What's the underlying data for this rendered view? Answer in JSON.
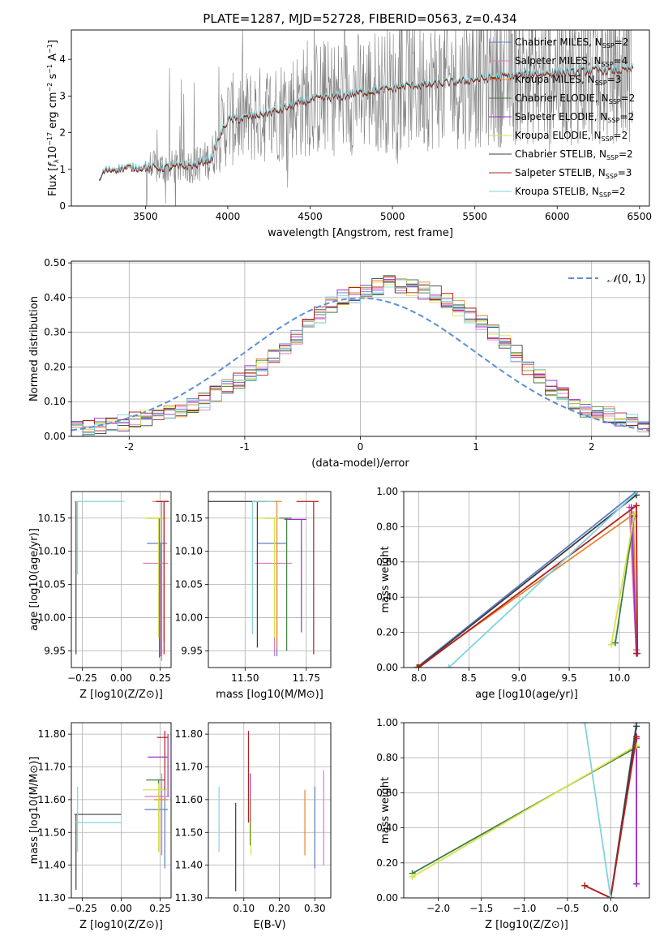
{
  "figure": {
    "title": "PLATE=1287, MJD=52728, FIBERID=0563, z=0.434"
  },
  "palette": [
    "#5b7fc4",
    "#e377c2",
    "#e5842b",
    "#3f7f3f",
    "#9a32c9",
    "#d9e24b",
    "#3d3d3d",
    "#b41f1f",
    "#7fd4e0"
  ],
  "chart_data": [
    {
      "id": "spectrum",
      "type": "line",
      "xlabel": "wavelength [Angstrom, rest frame]",
      "ylabel": "Flux [f_λ 10^-17 erg cm^-2 s^-1 A^-1]",
      "xlim": [
        3050,
        6560
      ],
      "ylim": [
        0,
        4.8
      ],
      "xticks": [
        3500,
        4000,
        4500,
        5000,
        5500,
        6000,
        6500
      ],
      "yticks": [
        0,
        1,
        2,
        3,
        4
      ],
      "grid": false,
      "legend_position": "top-right",
      "data_color": "#808080",
      "model_continuum": {
        "x": [
          3220,
          3250,
          3300,
          3400,
          3500,
          3600,
          3700,
          3800,
          3900,
          3950,
          4000,
          4050,
          4100,
          4200,
          4300,
          4400,
          4500,
          4600,
          4700,
          4800,
          4900,
          5000,
          5100,
          5200,
          5300,
          5400,
          5500,
          5600,
          5700,
          5800,
          5900,
          6000,
          6100,
          6200,
          6300,
          6400,
          6450
        ],
        "y": [
          0.7,
          0.95,
          1.0,
          1.05,
          1.05,
          1.05,
          1.07,
          1.12,
          1.3,
          1.9,
          2.35,
          2.35,
          2.4,
          2.5,
          2.6,
          2.75,
          2.9,
          2.95,
          3.0,
          3.1,
          3.15,
          3.2,
          3.3,
          3.3,
          3.35,
          3.4,
          3.45,
          3.5,
          3.55,
          3.6,
          3.6,
          3.65,
          3.65,
          3.7,
          3.7,
          3.7,
          3.75
        ]
      },
      "series": [
        {
          "name": "Chabrier MILES, N_SSP=2",
          "model": "Chabrier MILES",
          "nssp": "2",
          "color": "#5b7fc4",
          "offset": 0.02
        },
        {
          "name": "Salpeter MILES, N_SSP=4",
          "model": "Salpeter MILES",
          "nssp": "4",
          "color": "#e377c2",
          "offset": 0.0
        },
        {
          "name": "Kroupa MILES, N_SSP=3",
          "model": "Kroupa MILES",
          "nssp": "3",
          "color": "#e5842b",
          "offset": 0.01
        },
        {
          "name": "Chabrier ELODIE, N_SSP=2",
          "model": "Chabrier ELODIE",
          "nssp": "2",
          "color": "#3f7f3f",
          "offset": -0.01
        },
        {
          "name": "Salpeter ELODIE, N_SSP=2",
          "model": "Salpeter ELODIE",
          "nssp": "2",
          "color": "#9a32c9",
          "offset": 0.0
        },
        {
          "name": "Kroupa ELODIE, N_SSP=2",
          "model": "Kroupa ELODIE",
          "nssp": "2",
          "color": "#d9e24b",
          "offset": 0.02
        },
        {
          "name": "Chabrier STELIB, N_SSP=2",
          "model": "Chabrier STELIB",
          "nssp": "2",
          "color": "#3d3d3d",
          "offset": -0.02
        },
        {
          "name": "Salpeter STELIB, N_SSP=3",
          "model": "Salpeter STELIB",
          "nssp": "3",
          "color": "#b41f1f",
          "offset": 0.0
        },
        {
          "name": "Kroupa STELIB, N_SSP=2",
          "model": "Kroupa STELIB",
          "nssp": "2",
          "color": "#7fd4e0",
          "offset": 0.04
        }
      ]
    },
    {
      "id": "residuals",
      "type": "histogram",
      "xlabel": "(data-model)/error",
      "ylabel": "Normed distribution",
      "xlim": [
        -2.5,
        2.5
      ],
      "ylim": [
        0,
        0.505
      ],
      "xticks": [
        -2,
        -1,
        0,
        1,
        2
      ],
      "yticks": [
        0.0,
        0.1,
        0.2,
        0.3,
        0.4,
        0.5
      ],
      "grid": true,
      "legend_position": "top-right",
      "legend_label": "N(0,1)",
      "reference_color": "#5b8fd6",
      "bin_width": 0.1,
      "base_values": [
        0.02,
        0.025,
        0.03,
        0.035,
        0.04,
        0.05,
        0.055,
        0.06,
        0.07,
        0.08,
        0.09,
        0.1,
        0.12,
        0.14,
        0.16,
        0.18,
        0.2,
        0.23,
        0.26,
        0.29,
        0.32,
        0.35,
        0.38,
        0.4,
        0.41,
        0.42,
        0.43,
        0.44,
        0.43,
        0.43,
        0.42,
        0.41,
        0.39,
        0.37,
        0.35,
        0.33,
        0.3,
        0.27,
        0.24,
        0.2,
        0.17,
        0.14,
        0.12,
        0.1,
        0.08,
        0.07,
        0.06,
        0.05,
        0.04,
        0.035
      ]
    },
    {
      "id": "age-vs-Z",
      "type": "errorbar",
      "xlabel": "Z [log10(Z/Z⊙)]",
      "ylabel": "age [log10(age/yr)]",
      "xlim": [
        -0.32,
        0.32
      ],
      "ylim": [
        9.925,
        10.19
      ],
      "xticks": [
        -0.25,
        0.0,
        0.25
      ],
      "yticks": [
        9.95,
        10.0,
        10.05,
        10.1,
        10.15
      ],
      "grid": true,
      "points": [
        {
          "x": 0.255,
          "y": 10.112,
          "xerr": [
            0.09,
            0.04
          ],
          "yerr": [
            0.17,
            0.0
          ],
          "color": "#5b7fc4"
        },
        {
          "x": 0.25,
          "y": 10.082,
          "xerr": [
            0.11,
            0.05
          ],
          "yerr": [
            0.14,
            0.0
          ],
          "color": "#e377c2"
        },
        {
          "x": 0.26,
          "y": 10.175,
          "xerr": [
            0.06,
            0.04
          ],
          "yerr": [
            0.24,
            0.0
          ],
          "color": "#e5842b"
        },
        {
          "x": 0.245,
          "y": 10.15,
          "xerr": [
            0.08,
            0.05
          ],
          "yerr": [
            0.21,
            0.0
          ],
          "color": "#3f7f3f"
        },
        {
          "x": 0.275,
          "y": 10.175,
          "xerr": [
            0.05,
            0.03
          ],
          "yerr": [
            0.21,
            0.0
          ],
          "color": "#9a32c9"
        },
        {
          "x": 0.24,
          "y": 10.15,
          "xerr": [
            0.1,
            0.06
          ],
          "yerr": [
            0.18,
            0.0
          ],
          "color": "#d9e24b"
        },
        {
          "x": -0.29,
          "y": 10.175,
          "xerr": [
            0.01,
            0.0
          ],
          "yerr": [
            0.23,
            0.0
          ],
          "color": "#3d3d3d"
        },
        {
          "x": 0.275,
          "y": 10.175,
          "xerr": [
            0.05,
            0.03
          ],
          "yerr": [
            0.23,
            0.0
          ],
          "color": "#b41f1f"
        },
        {
          "x": -0.28,
          "y": 10.175,
          "xerr": [
            0.02,
            0.3
          ],
          "yerr": [
            0.11,
            0.0
          ],
          "color": "#7fd4e0"
        }
      ]
    },
    {
      "id": "age-vs-mass",
      "type": "errorbar",
      "xlabel": "mass [log10(M/M⊙)]",
      "ylabel": "",
      "xlim": [
        11.35,
        11.85
      ],
      "ylim": [
        9.925,
        10.19
      ],
      "xticks": [
        11.5,
        11.75
      ],
      "yticks": [
        9.95,
        10.0,
        10.05,
        10.1,
        10.15
      ],
      "grid": true,
      "points": [
        {
          "x": 11.63,
          "y": 10.112,
          "xerr": [
            0.08,
            0.04
          ],
          "yerr": [
            0.17,
            0.0
          ],
          "color": "#5b7fc4"
        },
        {
          "x": 11.62,
          "y": 10.082,
          "xerr": [
            0.08,
            0.07
          ],
          "yerr": [
            0.14,
            0.0
          ],
          "color": "#e377c2"
        },
        {
          "x": 11.63,
          "y": 10.175,
          "xerr": [
            0.08,
            0.02
          ],
          "yerr": [
            0.22,
            0.0
          ],
          "color": "#e5842b"
        },
        {
          "x": 11.67,
          "y": 10.15,
          "xerr": [
            0.09,
            0.02
          ],
          "yerr": [
            0.2,
            0.0
          ],
          "color": "#3f7f3f"
        },
        {
          "x": 11.73,
          "y": 10.148,
          "xerr": [
            0.07,
            0.02
          ],
          "yerr": [
            0.17,
            0.0
          ],
          "color": "#9a32c9"
        },
        {
          "x": 11.62,
          "y": 10.15,
          "xerr": [
            0.08,
            0.02
          ],
          "yerr": [
            0.18,
            0.0
          ],
          "color": "#d9e24b"
        },
        {
          "x": 11.55,
          "y": 10.175,
          "xerr": [
            0.2,
            0.04
          ],
          "yerr": [
            0.22,
            0.0
          ],
          "color": "#3d3d3d"
        },
        {
          "x": 11.78,
          "y": 10.175,
          "xerr": [
            0.07,
            0.02
          ],
          "yerr": [
            0.23,
            0.0
          ],
          "color": "#b41f1f"
        },
        {
          "x": 11.53,
          "y": 10.175,
          "xerr": [
            0.0,
            0.09
          ],
          "yerr": [
            0.2,
            0.0
          ],
          "color": "#7fd4e0"
        }
      ]
    },
    {
      "id": "weight-vs-age",
      "type": "line",
      "xlabel": "age [log10(age/yr)]",
      "ylabel": "mass weight",
      "xlim": [
        7.85,
        10.3
      ],
      "ylim": [
        0,
        1
      ],
      "xticks": [
        8.0,
        8.5,
        9.0,
        9.5,
        10.0
      ],
      "yticks": [
        0.0,
        0.2,
        0.4,
        0.6,
        0.8,
        1.0
      ],
      "grid": true,
      "series": [
        {
          "color": "#5b7fc4",
          "x": [
            7.98,
            10.17
          ],
          "y": [
            0.0,
            1.0
          ]
        },
        {
          "color": "#e377c2",
          "x": [
            10.1,
            10.17
          ],
          "y": [
            0.91,
            0.08
          ]
        },
        {
          "color": "#e5842b",
          "x": [
            7.98,
            10.14,
            10.17
          ],
          "y": [
            0.0,
            0.87,
            0.1
          ]
        },
        {
          "color": "#3f7f3f",
          "x": [
            9.96,
            10.15
          ],
          "y": [
            0.14,
            0.86
          ]
        },
        {
          "color": "#9a32c9",
          "x": [
            10.12,
            10.17
          ],
          "y": [
            0.91,
            0.08
          ]
        },
        {
          "color": "#d9e24b",
          "x": [
            9.92,
            10.15
          ],
          "y": [
            0.13,
            0.87
          ]
        },
        {
          "color": "#3d3d3d",
          "x": [
            7.99,
            10.17
          ],
          "y": [
            0.0,
            0.98
          ]
        },
        {
          "color": "#b41f1f",
          "x": [
            8.0,
            10.17,
            10.18
          ],
          "y": [
            0.0,
            0.92,
            0.08
          ]
        },
        {
          "color": "#7fd4e0",
          "x": [
            8.3,
            10.18
          ],
          "y": [
            0.0,
            1.0
          ]
        }
      ]
    },
    {
      "id": "mass-vs-Z",
      "type": "errorbar",
      "xlabel": "Z [log10(Z/Z⊙)]",
      "ylabel": "mass [log10(M/M⊙)]",
      "xlim": [
        -0.32,
        0.32
      ],
      "ylim": [
        11.3,
        11.835
      ],
      "xticks": [
        -0.25,
        0.0,
        0.25
      ],
      "yticks": [
        11.3,
        11.4,
        11.5,
        11.6,
        11.7,
        11.8
      ],
      "grid": true,
      "points": [
        {
          "x": 0.28,
          "y": 11.57,
          "xerr": [
            0.13,
            0.02
          ],
          "yerr": [
            0.18,
            0.07
          ],
          "color": "#5b7fc4"
        },
        {
          "x": 0.26,
          "y": 11.61,
          "xerr": [
            0.11,
            0.05
          ],
          "yerr": [
            0.18,
            0.07
          ],
          "color": "#e377c2"
        },
        {
          "x": 0.26,
          "y": 11.6,
          "xerr": [
            0.05,
            0.04
          ],
          "yerr": [
            0.17,
            0.05
          ],
          "color": "#e5842b"
        },
        {
          "x": 0.24,
          "y": 11.66,
          "xerr": [
            0.08,
            0.04
          ],
          "yerr": [
            0.22,
            0.0
          ],
          "color": "#3f7f3f"
        },
        {
          "x": 0.3,
          "y": 11.73,
          "xerr": [
            0.13,
            0.0
          ],
          "yerr": [
            0.12,
            0.07
          ],
          "color": "#9a32c9"
        },
        {
          "x": 0.24,
          "y": 11.63,
          "xerr": [
            0.1,
            0.06
          ],
          "yerr": [
            0.19,
            0.02
          ],
          "color": "#d9e24b"
        },
        {
          "x": -0.29,
          "y": 11.555,
          "xerr": [
            0.01,
            0.29
          ],
          "yerr": [
            0.23,
            0.0
          ],
          "color": "#3d3d3d"
        },
        {
          "x": 0.28,
          "y": 11.79,
          "xerr": [
            0.05,
            0.02
          ],
          "yerr": [
            0.16,
            0.02
          ],
          "color": "#b41f1f"
        },
        {
          "x": -0.28,
          "y": 11.53,
          "xerr": [
            0.02,
            0.28
          ],
          "yerr": [
            0.09,
            0.11
          ],
          "color": "#7fd4e0"
        }
      ]
    },
    {
      "id": "mass-vs-EBV",
      "type": "errorbar",
      "xlabel": "E(B-V)",
      "ylabel": "",
      "xlim": [
        0.0,
        0.345
      ],
      "ylim": [
        11.3,
        11.835
      ],
      "xticks": [
        0.1,
        0.2,
        0.3
      ],
      "yticks": [
        11.3,
        11.4,
        11.5,
        11.6,
        11.7,
        11.8
      ],
      "grid": true,
      "points": [
        {
          "x": 0.3,
          "y": 11.55,
          "xerr": [
            0.0,
            0.0
          ],
          "yerr": [
            0.16,
            0.09
          ],
          "color": "#5b7fc4"
        },
        {
          "x": 0.325,
          "y": 11.55,
          "xerr": [
            0.0,
            0.0
          ],
          "yerr": [
            0.15,
            0.14
          ],
          "color": "#e377c2"
        },
        {
          "x": 0.272,
          "y": 11.53,
          "xerr": [
            0.0,
            0.0
          ],
          "yerr": [
            0.1,
            0.1
          ],
          "color": "#e5842b"
        },
        {
          "x": 0.118,
          "y": 11.6,
          "xerr": [
            0.0,
            0.0
          ],
          "yerr": [
            0.14,
            0.0
          ],
          "color": "#3f7f3f"
        },
        {
          "x": 0.118,
          "y": 11.65,
          "xerr": [
            0.0,
            0.0
          ],
          "yerr": [
            0.12,
            0.03
          ],
          "color": "#9a32c9"
        },
        {
          "x": 0.12,
          "y": 11.55,
          "xerr": [
            0.0,
            0.0
          ],
          "yerr": [
            0.12,
            0.06
          ],
          "color": "#d9e24b"
        },
        {
          "x": 0.077,
          "y": 11.46,
          "xerr": [
            0.0,
            0.0
          ],
          "yerr": [
            0.14,
            0.13
          ],
          "color": "#3d3d3d"
        },
        {
          "x": 0.113,
          "y": 11.67,
          "xerr": [
            0.0,
            0.0
          ],
          "yerr": [
            0.14,
            0.14
          ],
          "color": "#b41f1f"
        },
        {
          "x": 0.03,
          "y": 11.54,
          "xerr": [
            0.0,
            0.0
          ],
          "yerr": [
            0.1,
            0.1
          ],
          "color": "#7fd4e0"
        }
      ]
    },
    {
      "id": "weight-vs-Z",
      "type": "line",
      "xlabel": "Z [log10(Z/Z⊙)]",
      "ylabel": "mass weight",
      "xlim": [
        -2.4,
        0.45
      ],
      "ylim": [
        0,
        1
      ],
      "xticks": [
        -2.0,
        -1.5,
        -1.0,
        -0.5,
        0.0
      ],
      "yticks": [
        0.0,
        0.2,
        0.4,
        0.6,
        0.8,
        1.0
      ],
      "grid": true,
      "series": [
        {
          "color": "#5b7fc4",
          "x": [
            0.0,
            0.3
          ],
          "y": [
            0.0,
            1.0
          ]
        },
        {
          "color": "#e377c2",
          "x": [
            0.3,
            0.3
          ],
          "y": [
            0.91,
            0.08
          ]
        },
        {
          "color": "#e5842b",
          "x": [
            -0.3,
            0.0,
            0.3
          ],
          "y": [
            0.07,
            0.0,
            0.92
          ]
        },
        {
          "color": "#3f7f3f",
          "x": [
            -2.3,
            0.3
          ],
          "y": [
            0.14,
            0.86
          ]
        },
        {
          "color": "#9a32c9",
          "x": [
            0.3,
            0.3
          ],
          "y": [
            0.91,
            0.08
          ]
        },
        {
          "color": "#d9e24b",
          "x": [
            -2.3,
            0.3
          ],
          "y": [
            0.12,
            0.87
          ]
        },
        {
          "color": "#3d3d3d",
          "x": [
            0.0,
            0.3
          ],
          "y": [
            0.0,
            0.98
          ]
        },
        {
          "color": "#b41f1f",
          "x": [
            -0.3,
            0.0,
            0.3
          ],
          "y": [
            0.07,
            0.0,
            0.92
          ]
        },
        {
          "color": "#7fd4e0",
          "x": [
            -0.3,
            0.0
          ],
          "y": [
            1.0,
            0.0
          ]
        }
      ]
    }
  ]
}
